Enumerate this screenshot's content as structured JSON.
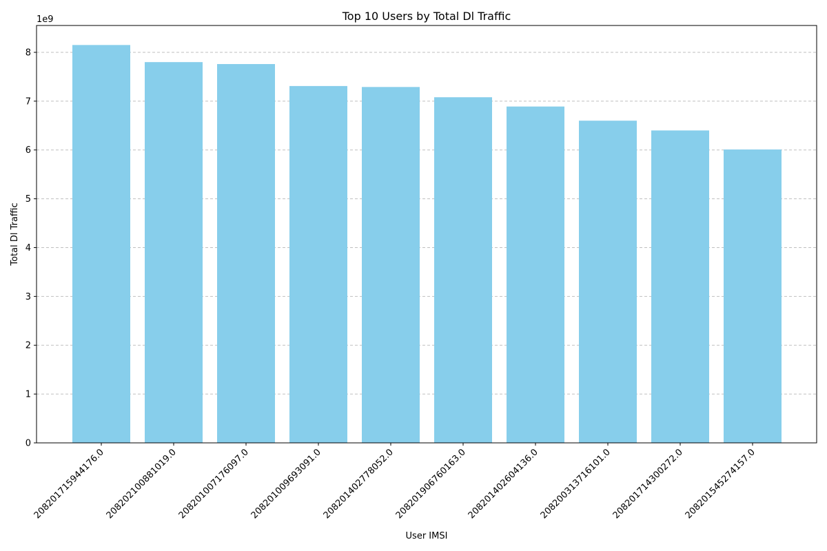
{
  "chart_data": {
    "type": "bar",
    "title": "Top 10 Users by Total Dl Traffic",
    "xlabel": "User IMSI",
    "ylabel": "Total Dl Traffic",
    "offset_label": "1e9",
    "categories": [
      "208201715944176.0",
      "208202100881019.0",
      "208201007176097.0",
      "208201009693091.0",
      "208201402778052.0",
      "208201906760163.0",
      "208201402604136.0",
      "208200313716101.0",
      "208201714300272.0",
      "208201545274157.0"
    ],
    "values": [
      8150000000,
      7800000000,
      7760000000,
      7310000000,
      7290000000,
      7080000000,
      6890000000,
      6600000000,
      6400000000,
      6010000000
    ],
    "ylim": [
      0,
      8550000000
    ],
    "yticks": [
      0,
      1,
      2,
      3,
      4,
      5,
      6,
      7,
      8
    ],
    "ytick_multiplier": 1000000000,
    "grid": "y-dashed",
    "bar_color": "#87ceeb",
    "legend": "none"
  }
}
